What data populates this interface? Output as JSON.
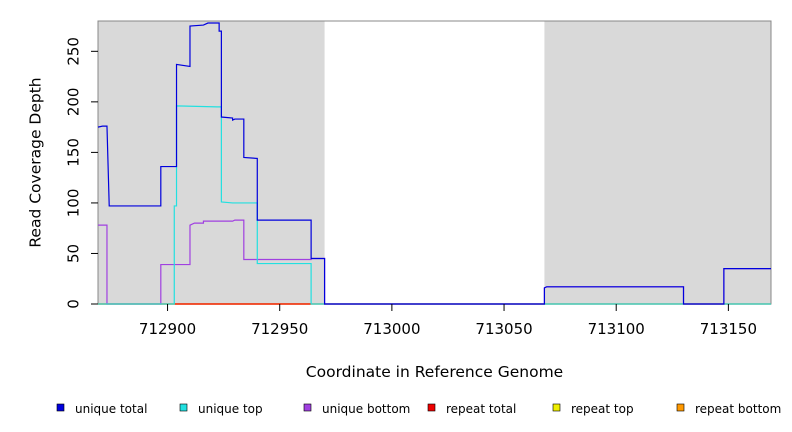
{
  "chart_data": {
    "type": "line",
    "step": true,
    "xlabel": "Coordinate in Reference Genome",
    "ylabel": "Read Coverage Depth",
    "xlim": [
      712869,
      713169
    ],
    "ylim": [
      0,
      280
    ],
    "xticks": [
      712900,
      712950,
      713000,
      713050,
      713100,
      713150
    ],
    "yticks": [
      0,
      50,
      100,
      150,
      200,
      250
    ],
    "shaded_regions": [
      [
        712869,
        712970
      ],
      [
        713068,
        713169
      ]
    ],
    "shade_color": "#d9d9d9",
    "legend": "bottom",
    "series": [
      {
        "name": "unique total",
        "color": "#0000dd",
        "points": [
          [
            712869,
            175
          ],
          [
            712871,
            176
          ],
          [
            712873,
            176
          ],
          [
            712874,
            97
          ],
          [
            712897,
            97
          ],
          [
            712897,
            136
          ],
          [
            712904,
            136
          ],
          [
            712904,
            237
          ],
          [
            712910,
            235
          ],
          [
            712910,
            275
          ],
          [
            712916,
            276
          ],
          [
            712918,
            278
          ],
          [
            712923,
            278
          ],
          [
            712923,
            270
          ],
          [
            712924,
            270
          ],
          [
            712924,
            185
          ],
          [
            712929,
            184
          ],
          [
            712929,
            182
          ],
          [
            712930,
            183
          ],
          [
            712934,
            183
          ],
          [
            712934,
            145
          ],
          [
            712940,
            144
          ],
          [
            712940,
            83
          ],
          [
            712964,
            83
          ],
          [
            712964,
            45
          ],
          [
            712970,
            45
          ],
          [
            712970,
            0
          ],
          [
            713068,
            0
          ],
          [
            713068,
            16
          ],
          [
            713069,
            17
          ],
          [
            713130,
            17
          ],
          [
            713130,
            0
          ],
          [
            713148,
            0
          ],
          [
            713148,
            35
          ],
          [
            713169,
            35
          ]
        ]
      },
      {
        "name": "unique top",
        "color": "#22e0e0",
        "points": [
          [
            712869,
            0
          ],
          [
            712903,
            0
          ],
          [
            712903,
            97
          ],
          [
            712903,
            97
          ],
          [
            712904,
            97
          ],
          [
            712904,
            196
          ],
          [
            712922,
            195
          ],
          [
            712922,
            195
          ],
          [
            712924,
            195
          ],
          [
            712924,
            101
          ],
          [
            712929,
            100
          ],
          [
            712940,
            100
          ],
          [
            712940,
            40
          ],
          [
            712964,
            40
          ],
          [
            712964,
            0
          ],
          [
            713169,
            0
          ]
        ]
      },
      {
        "name": "unique bottom",
        "color": "#a040e0",
        "points": [
          [
            712869,
            78
          ],
          [
            712873,
            78
          ],
          [
            712873,
            0
          ],
          [
            712897,
            0
          ],
          [
            712897,
            39
          ],
          [
            712910,
            39
          ],
          [
            712910,
            78
          ],
          [
            712912,
            80
          ],
          [
            712916,
            80
          ],
          [
            712916,
            82
          ],
          [
            712929,
            82
          ],
          [
            712930,
            83
          ],
          [
            712934,
            83
          ],
          [
            712934,
            44
          ],
          [
            712964,
            44
          ],
          [
            712964,
            45
          ],
          [
            712970,
            45
          ],
          [
            712970,
            0
          ],
          [
            713068,
            0
          ],
          [
            713068,
            16
          ],
          [
            713069,
            17
          ],
          [
            713130,
            17
          ],
          [
            713130,
            0
          ],
          [
            713148,
            0
          ],
          [
            713148,
            35
          ],
          [
            713169,
            35
          ]
        ]
      },
      {
        "name": "repeat total",
        "color": "#ee0000",
        "points": [
          [
            712869,
            0
          ],
          [
            713169,
            0
          ]
        ]
      },
      {
        "name": "repeat top",
        "color": "#eeee00",
        "points": [
          [
            712869,
            0
          ],
          [
            713169,
            0
          ]
        ]
      },
      {
        "name": "repeat bottom",
        "color": "#ff9900",
        "points": [
          [
            712869,
            0
          ],
          [
            712964,
            0
          ]
        ]
      }
    ]
  }
}
